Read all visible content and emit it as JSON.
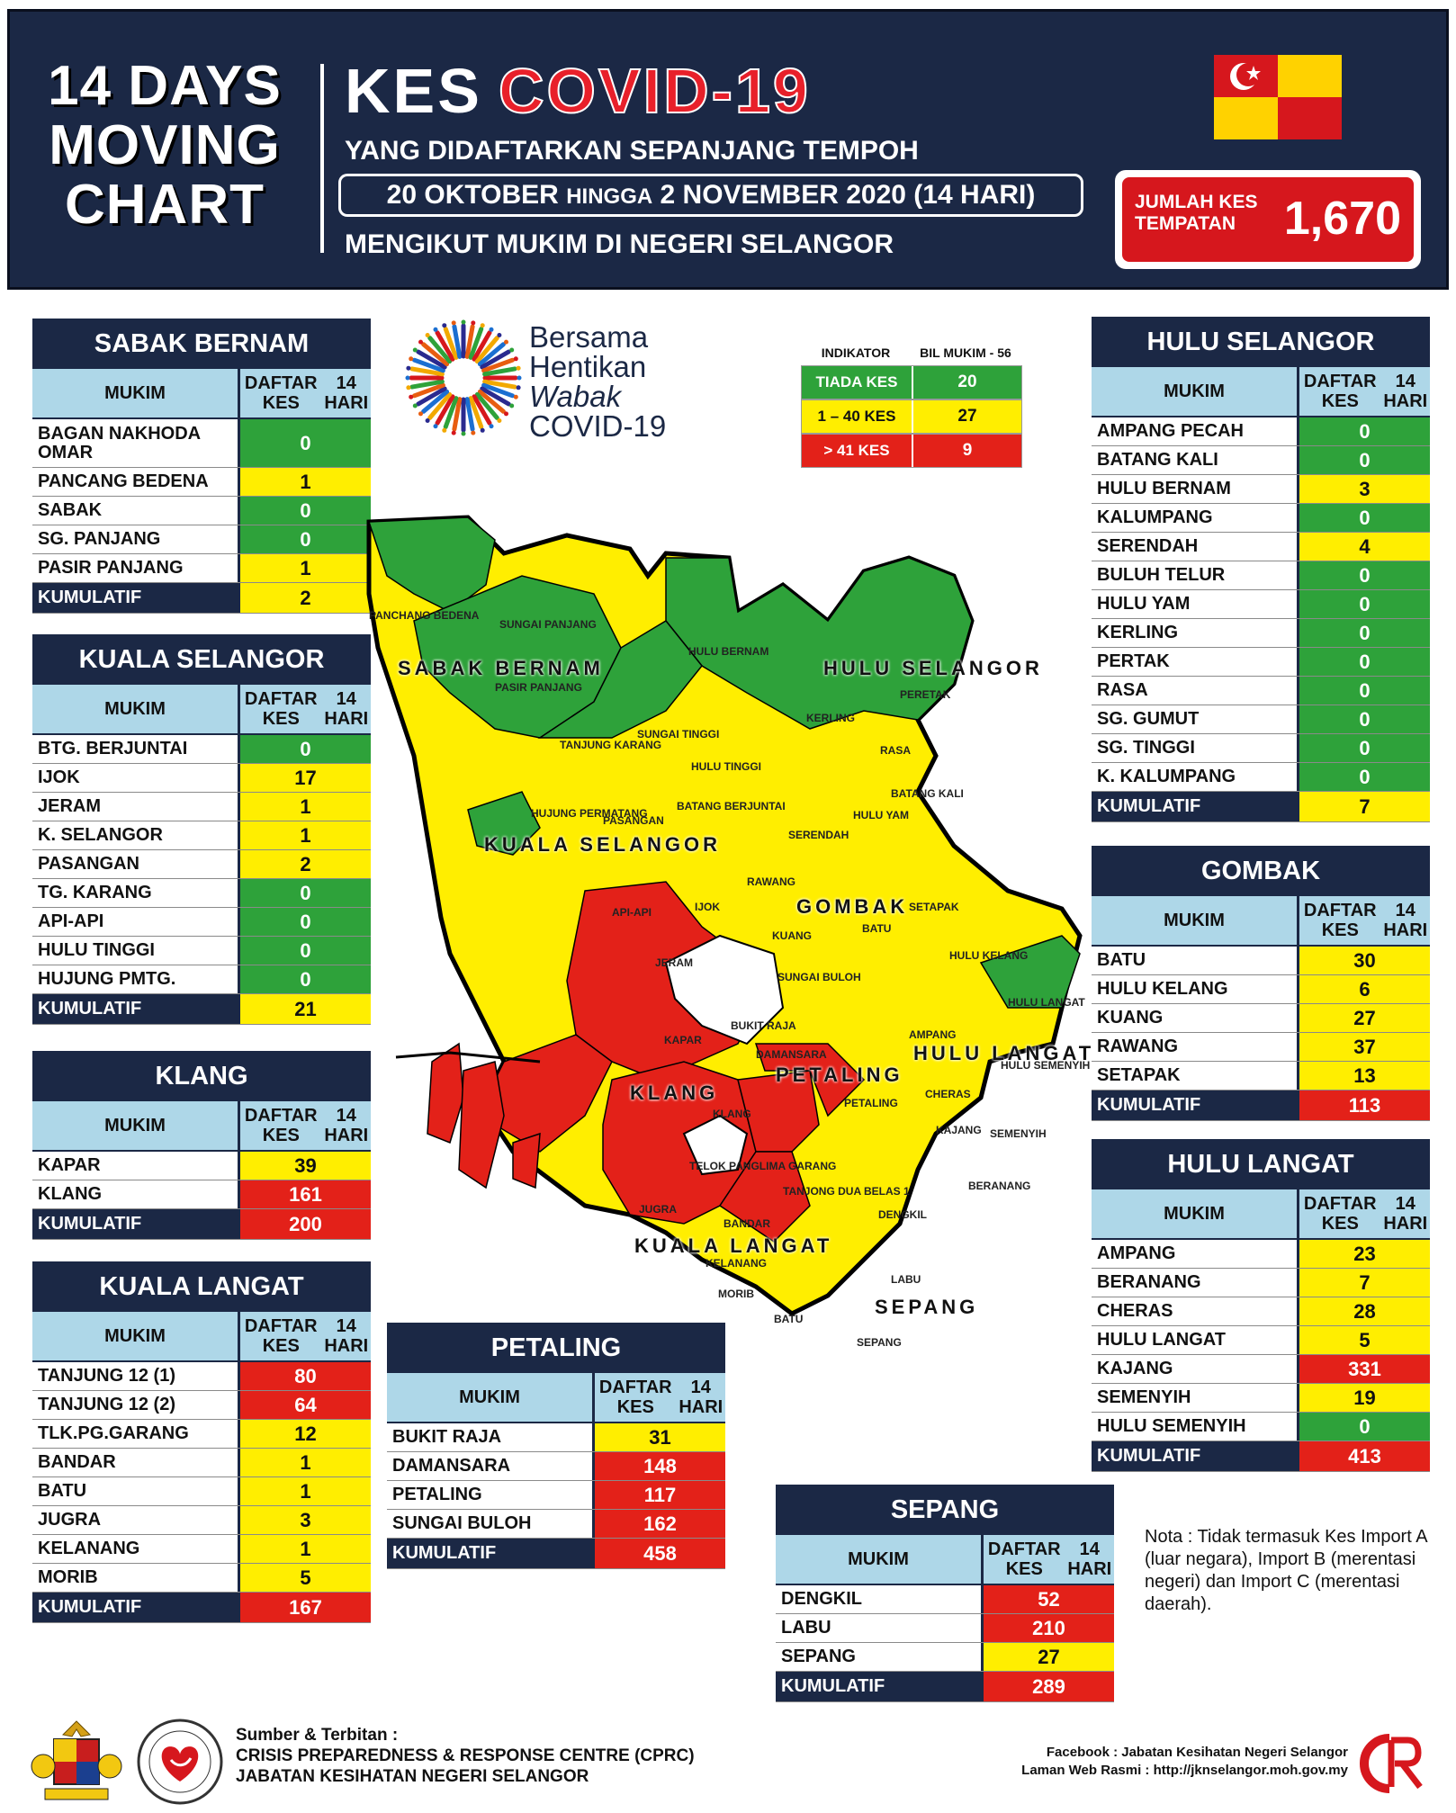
{
  "header": {
    "left_title": [
      "14 DAYS",
      "MOVING",
      "CHART"
    ],
    "kes": "KES",
    "covid": "COVID-19",
    "subtitle1": "YANG DIDAFTARKAN SEPANJANG TEMPOH",
    "date_from": "20 OKTOBER",
    "date_mid": "HINGGA",
    "date_to": "2 NOVEMBER 2020 (14 HARI)",
    "subtitle2": "MENGIKUT MUKIM DI NEGERI SELANGOR",
    "jumlah_label": [
      "JUMLAH KES",
      "TEMPATAN"
    ],
    "jumlah_value": "1,670"
  },
  "logo": {
    "lines": [
      "Bersama",
      "Hentikan",
      "Wabak",
      "COVID-19"
    ]
  },
  "indicator": {
    "head": [
      "INDIKATOR",
      "BIL MUKIM - 56"
    ],
    "rows": [
      {
        "label": "TIADA KES",
        "count": "20",
        "color": "g"
      },
      {
        "label": "1 – 40 KES",
        "count": "27",
        "color": "y"
      },
      {
        "label": "> 41 KES",
        "count": "9",
        "color": "r"
      }
    ]
  },
  "col_head": {
    "mukim": "MUKIM",
    "daftar": [
      "DAFTAR KES",
      "14 HARI"
    ]
  },
  "kumulatif_label": "KUMULATIF",
  "tables": {
    "sabak_bernam": {
      "title": "SABAK BERNAM",
      "rows": [
        {
          "mukim": "BAGAN NAKHODA OMAR",
          "kes": "0",
          "c": "g",
          "tall": true
        },
        {
          "mukim": "PANCANG BEDENA",
          "kes": "1",
          "c": "y"
        },
        {
          "mukim": "SABAK",
          "kes": "0",
          "c": "g"
        },
        {
          "mukim": "SG. PANJANG",
          "kes": "0",
          "c": "g"
        },
        {
          "mukim": "PASIR PANJANG",
          "kes": "1",
          "c": "y"
        }
      ],
      "kumulatif": "2",
      "kc": "y"
    },
    "kuala_selangor": {
      "title": "KUALA SELANGOR",
      "rows": [
        {
          "mukim": "BTG. BERJUNTAI",
          "kes": "0",
          "c": "g"
        },
        {
          "mukim": "IJOK",
          "kes": "17",
          "c": "y"
        },
        {
          "mukim": "JERAM",
          "kes": "1",
          "c": "y"
        },
        {
          "mukim": "K. SELANGOR",
          "kes": "1",
          "c": "y"
        },
        {
          "mukim": "PASANGAN",
          "kes": "2",
          "c": "y"
        },
        {
          "mukim": "TG. KARANG",
          "kes": "0",
          "c": "g"
        },
        {
          "mukim": "API-API",
          "kes": "0",
          "c": "g"
        },
        {
          "mukim": "HULU TINGGI",
          "kes": "0",
          "c": "g"
        },
        {
          "mukim": "HUJUNG PMTG.",
          "kes": "0",
          "c": "g"
        }
      ],
      "kumulatif": "21",
      "kc": "y"
    },
    "klang": {
      "title": "KLANG",
      "rows": [
        {
          "mukim": "KAPAR",
          "kes": "39",
          "c": "y"
        },
        {
          "mukim": "KLANG",
          "kes": "161",
          "c": "r"
        }
      ],
      "kumulatif": "200",
      "kc": "r"
    },
    "kuala_langat": {
      "title": "KUALA LANGAT",
      "rows": [
        {
          "mukim": "TANJUNG 12 (1)",
          "kes": "80",
          "c": "r"
        },
        {
          "mukim": "TANJUNG 12 (2)",
          "kes": "64",
          "c": "r"
        },
        {
          "mukim": "TLK.PG.GARANG",
          "kes": "12",
          "c": "y"
        },
        {
          "mukim": "BANDAR",
          "kes": "1",
          "c": "y"
        },
        {
          "mukim": "BATU",
          "kes": "1",
          "c": "y"
        },
        {
          "mukim": "JUGRA",
          "kes": "3",
          "c": "y"
        },
        {
          "mukim": "KELANANG",
          "kes": "1",
          "c": "y"
        },
        {
          "mukim": "MORIB",
          "kes": "5",
          "c": "y"
        }
      ],
      "kumulatif": "167",
      "kc": "r"
    },
    "petaling": {
      "title": "PETALING",
      "rows": [
        {
          "mukim": "BUKIT RAJA",
          "kes": "31",
          "c": "y"
        },
        {
          "mukim": "DAMANSARA",
          "kes": "148",
          "c": "r"
        },
        {
          "mukim": "PETALING",
          "kes": "117",
          "c": "r"
        },
        {
          "mukim": "SUNGAI BULOH",
          "kes": "162",
          "c": "r"
        }
      ],
      "kumulatif": "458",
      "kc": "r"
    },
    "sepang": {
      "title": "SEPANG",
      "rows": [
        {
          "mukim": "DENGKIL",
          "kes": "52",
          "c": "r"
        },
        {
          "mukim": "LABU",
          "kes": "210",
          "c": "r"
        },
        {
          "mukim": "SEPANG",
          "kes": "27",
          "c": "y"
        }
      ],
      "kumulatif": "289",
      "kc": "r"
    },
    "hulu_selangor": {
      "title": "HULU SELANGOR",
      "rows": [
        {
          "mukim": "AMPANG PECAH",
          "kes": "0",
          "c": "g"
        },
        {
          "mukim": "BATANG KALI",
          "kes": "0",
          "c": "g"
        },
        {
          "mukim": "HULU BERNAM",
          "kes": "3",
          "c": "y"
        },
        {
          "mukim": "KALUMPANG",
          "kes": "0",
          "c": "g"
        },
        {
          "mukim": "SERENDAH",
          "kes": "4",
          "c": "y"
        },
        {
          "mukim": "BULUH TELUR",
          "kes": "0",
          "c": "g"
        },
        {
          "mukim": "HULU YAM",
          "kes": "0",
          "c": "g"
        },
        {
          "mukim": "KERLING",
          "kes": "0",
          "c": "g"
        },
        {
          "mukim": "PERTAK",
          "kes": "0",
          "c": "g"
        },
        {
          "mukim": "RASA",
          "kes": "0",
          "c": "g"
        },
        {
          "mukim": "SG. GUMUT",
          "kes": "0",
          "c": "g"
        },
        {
          "mukim": "SG. TINGGI",
          "kes": "0",
          "c": "g"
        },
        {
          "mukim": "K. KALUMPANG",
          "kes": "0",
          "c": "g"
        }
      ],
      "kumulatif": "7",
      "kc": "y"
    },
    "gombak": {
      "title": "GOMBAK",
      "rows": [
        {
          "mukim": "BATU",
          "kes": "30",
          "c": "y"
        },
        {
          "mukim": "HULU KELANG",
          "kes": "6",
          "c": "y"
        },
        {
          "mukim": "KUANG",
          "kes": "27",
          "c": "y"
        },
        {
          "mukim": "RAWANG",
          "kes": "37",
          "c": "y"
        },
        {
          "mukim": "SETAPAK",
          "kes": "13",
          "c": "y"
        }
      ],
      "kumulatif": "113",
      "kc": "r"
    },
    "hulu_langat": {
      "title": "HULU LANGAT",
      "rows": [
        {
          "mukim": "AMPANG",
          "kes": "23",
          "c": "y"
        },
        {
          "mukim": "BERANANG",
          "kes": "7",
          "c": "y"
        },
        {
          "mukim": "CHERAS",
          "kes": "28",
          "c": "y"
        },
        {
          "mukim": "HULU LANGAT",
          "kes": "5",
          "c": "y"
        },
        {
          "mukim": "KAJANG",
          "kes": "331",
          "c": "r"
        },
        {
          "mukim": "SEMENYIH",
          "kes": "19",
          "c": "y"
        },
        {
          "mukim": "HULU SEMENYIH",
          "kes": "0",
          "c": "g"
        }
      ],
      "kumulatif": "413",
      "kc": "r"
    }
  },
  "map": {
    "district_labels": [
      "SABAK BERNAM",
      "HULU SELANGOR",
      "KUALA SELANGOR",
      "GOMBAK",
      "HULU LANGAT",
      "PETALING",
      "KLANG",
      "KUALA LANGAT",
      "SEPANG"
    ],
    "mukim_labels": [
      "PANCHANG BEDENA",
      "SUNGAI PANJANG",
      "PASIR PANJANG",
      "HULU BERNAM",
      "TANJUNG KARANG",
      "SUNGAI TINGGI",
      "HULU TINGGI",
      "BATANG BERJUNTAI",
      "PASANGAN",
      "HUJUNG PERMATANG",
      "KERLING",
      "PERETAK",
      "RASA",
      "BATANG KALI",
      "HULU YAM",
      "SERENDAH",
      "RAWANG",
      "IJOK",
      "KUANG",
      "BATU",
      "SETAPAK",
      "API-API",
      "JERAM",
      "SUNGAI BULOH",
      "HULU KELANG",
      "HULU LANGAT",
      "KAPAR",
      "BUKIT RAJA",
      "DAMANSARA",
      "PETALING",
      "AMPANG",
      "HULU SEMENYIH",
      "CHERAS",
      "KLANG",
      "KAJANG",
      "SEMENYIH",
      "TELOK PANGLIMA GARANG",
      "TANJONG DUA BELAS 1",
      "BERANANG",
      "JUGRA",
      "BANDAR",
      "DENGKIL",
      "KELANANG",
      "LABU",
      "MORIB",
      "BATU",
      "SEPANG"
    ]
  },
  "nota": "Nota : Tidak termasuk Kes Import A (luar negara), Import B (merentasi negeri) dan Import C (merentasi daerah).",
  "footer": {
    "src_title": "Sumber & Terbitan :",
    "src1": "CRISIS PREPAREDNESS & RESPONSE CENTRE (CPRC)",
    "src2": "JABATAN KESIHATAN NEGERI SELANGOR",
    "fb": "Facebook : Jabatan Kesihatan Negeri Selangor",
    "web": "Laman Web Rasmi : http://jknselangor.moh.gov.my"
  }
}
